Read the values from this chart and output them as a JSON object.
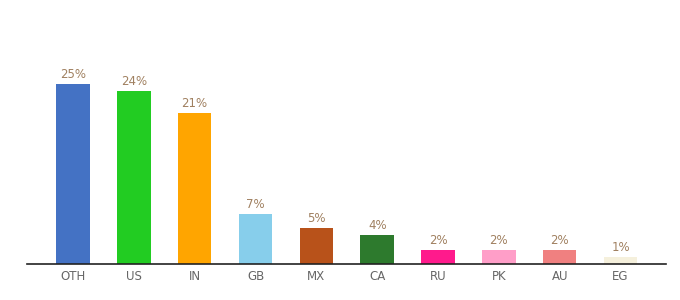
{
  "categories": [
    "OTH",
    "US",
    "IN",
    "GB",
    "MX",
    "CA",
    "RU",
    "PK",
    "AU",
    "EG"
  ],
  "values": [
    25,
    24,
    21,
    7,
    5,
    4,
    2,
    2,
    2,
    1
  ],
  "bar_colors": [
    "#4472c4",
    "#22cc22",
    "#ffa500",
    "#87ceeb",
    "#b8521a",
    "#2d7a2d",
    "#ff1a8c",
    "#ff9ec8",
    "#f08080",
    "#f5f0dc"
  ],
  "background_color": "#ffffff",
  "label_color": "#a08060",
  "label_fontsize": 8.5,
  "tick_fontsize": 8.5,
  "ylim": [
    0,
    30
  ],
  "bar_width": 0.55
}
